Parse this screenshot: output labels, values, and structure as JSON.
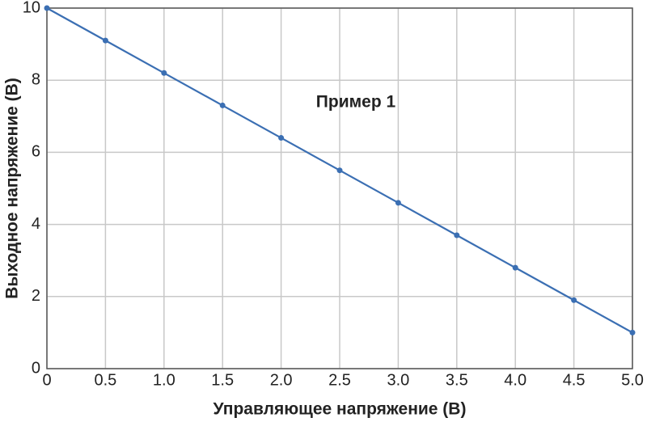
{
  "chart_data": {
    "type": "line",
    "annotation": "Пример 1",
    "xlabel": "Управляющее напряжение (В)",
    "ylabel": "Выходное напряжение (В)",
    "x": [
      0,
      0.5,
      1,
      1.5,
      2,
      2.5,
      3,
      3.5,
      4,
      4.5,
      5
    ],
    "series": [
      {
        "name": "Пример 1",
        "color": "#3b6fb3",
        "values": [
          10,
          9.1,
          8.2,
          7.3,
          6.4,
          5.5,
          4.6,
          3.7,
          2.8,
          1.9,
          1.0
        ]
      }
    ],
    "xlim": [
      0,
      5
    ],
    "xticks": [
      0,
      0.5,
      {
        "value": 1,
        "label": "1.0"
      },
      1.5,
      {
        "value": 2,
        "label": "2.0"
      },
      2.5,
      {
        "value": 3,
        "label": "3.0"
      },
      3.5,
      {
        "value": 4,
        "label": "4.0"
      },
      4.5,
      {
        "value": 5,
        "label": "5.0"
      }
    ],
    "ylim": [
      0,
      10
    ],
    "yticks": [
      0,
      2,
      4,
      6,
      8,
      10
    ],
    "grid": true
  }
}
